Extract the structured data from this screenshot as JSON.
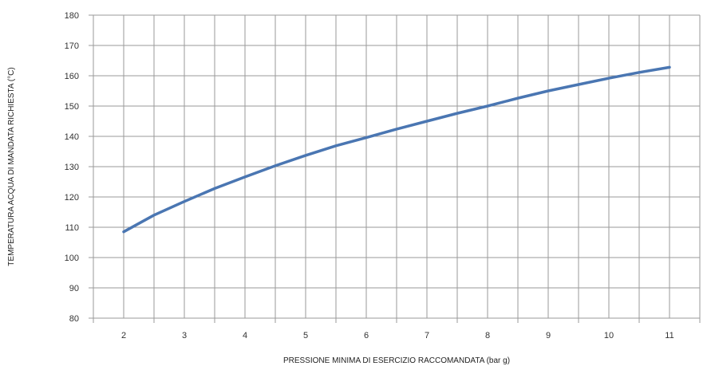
{
  "chart_data": {
    "type": "line",
    "xlabel": "PRESSIONE MINIMA DI ESERCIZIO RACCOMANDATA (bar g)",
    "ylabel": "TEMPERATURA ACQUA DI MANDATA RICHIESTA (°C)",
    "xlim": [
      1.5,
      11.5
    ],
    "ylim": [
      80,
      180
    ],
    "x_ticks": [
      "2",
      "3",
      "4",
      "5",
      "6",
      "7",
      "8",
      "9",
      "10",
      "11"
    ],
    "y_ticks": [
      "80",
      "90",
      "100",
      "110",
      "120",
      "130",
      "140",
      "150",
      "160",
      "170",
      "180"
    ],
    "grid": true,
    "legend": "none",
    "series": [
      {
        "color": "#4a76b2",
        "x": [
          2,
          2.5,
          3,
          3.5,
          4,
          4.5,
          5,
          5.5,
          6,
          6.5,
          7,
          7.5,
          8,
          8.5,
          9,
          9.5,
          10,
          10.5,
          11
        ],
        "y": [
          108.5,
          114,
          118.5,
          122.8,
          126.6,
          130.3,
          133.7,
          136.9,
          139.6,
          142.4,
          145,
          147.6,
          150,
          152.6,
          155,
          157.1,
          159.2,
          161.1,
          162.8
        ]
      }
    ]
  }
}
